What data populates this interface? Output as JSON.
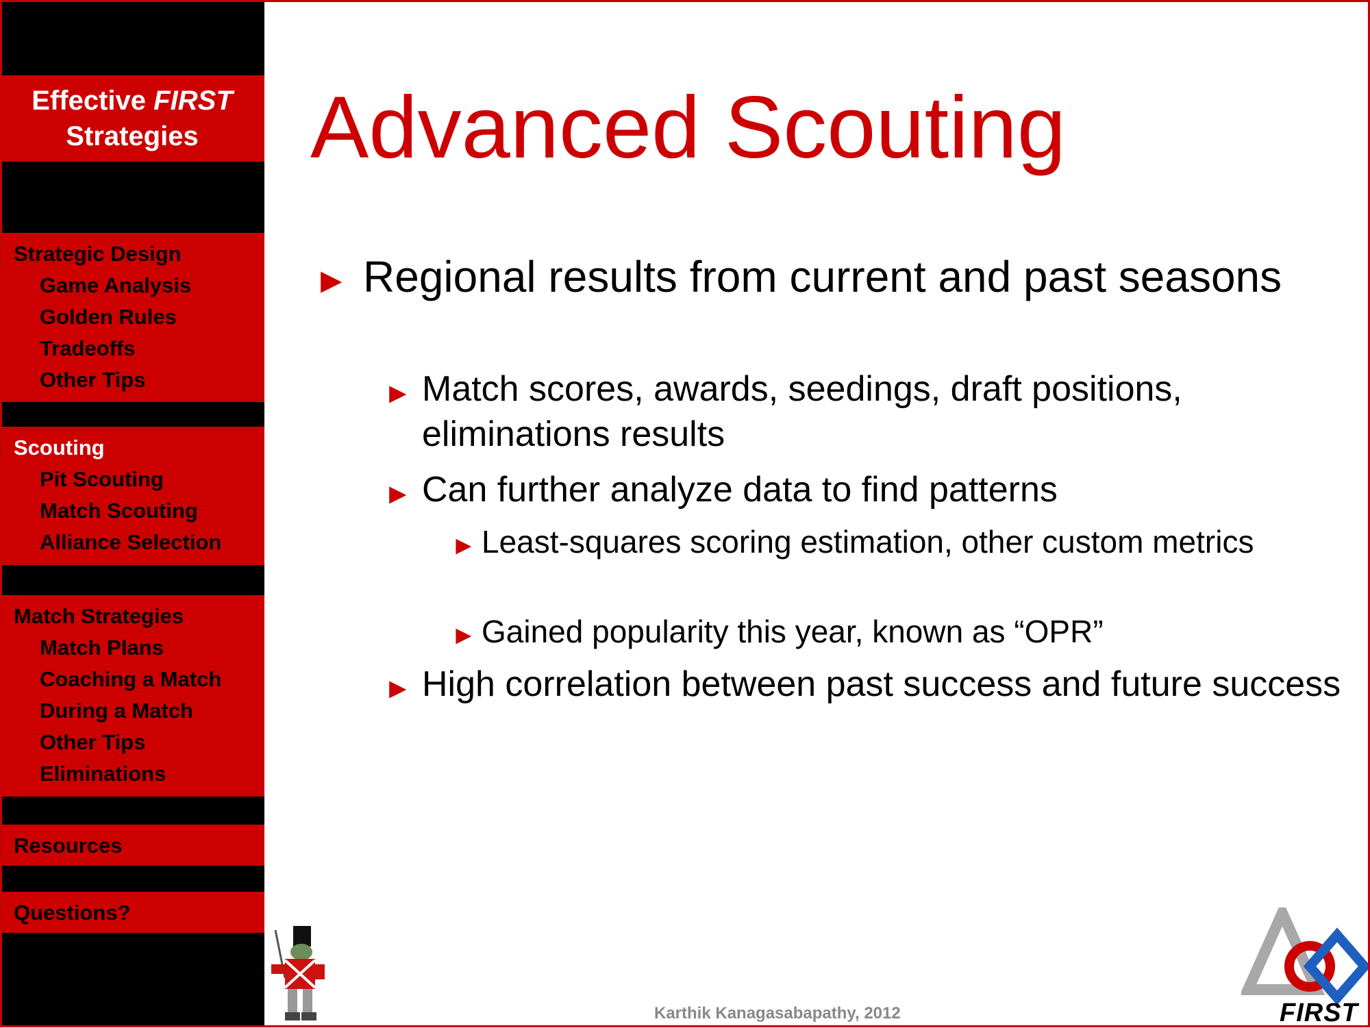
{
  "sidebar": {
    "brand_prefix": "Effective ",
    "brand_first": "FIRST",
    "brand_suffix": "Strategies",
    "sections": [
      {
        "label": "Strategic Design",
        "items": [
          "Game Analysis",
          "Golden Rules",
          "Tradeoffs",
          "Other Tips"
        ]
      },
      {
        "label": "Scouting",
        "items": [
          "Pit Scouting",
          "Match Scouting",
          "Alliance Selection"
        ]
      },
      {
        "label": "Match Strategies",
        "items": [
          "Match Plans",
          "Coaching a Match",
          "During a Match",
          "Other Tips",
          "Eliminations"
        ]
      },
      {
        "label": "Resources",
        "items": []
      },
      {
        "label": "Questions?",
        "items": []
      }
    ],
    "active_section": "Scouting"
  },
  "slide": {
    "title": "Advanced Scouting",
    "arrow": "►",
    "bullets": {
      "b1": "Regional results from current and past seasons",
      "b1_1": "Match scores, awards, seedings, draft positions, eliminations results",
      "b1_2": "Can further analyze data to find patterns",
      "b1_2_1": "Least-squares scoring estimation, other custom metrics",
      "b1_2_2": "Gained popularity this year, known as “OPR”",
      "b1_3": "High correlation between past success and future success"
    }
  },
  "footer": {
    "author": "Karthik Kanagasabapathy, 2012"
  },
  "logo": {
    "text": "FIRST"
  },
  "colors": {
    "accent": "#cc0000",
    "sidebar_bg": "#000000",
    "footer_text": "#888888"
  }
}
